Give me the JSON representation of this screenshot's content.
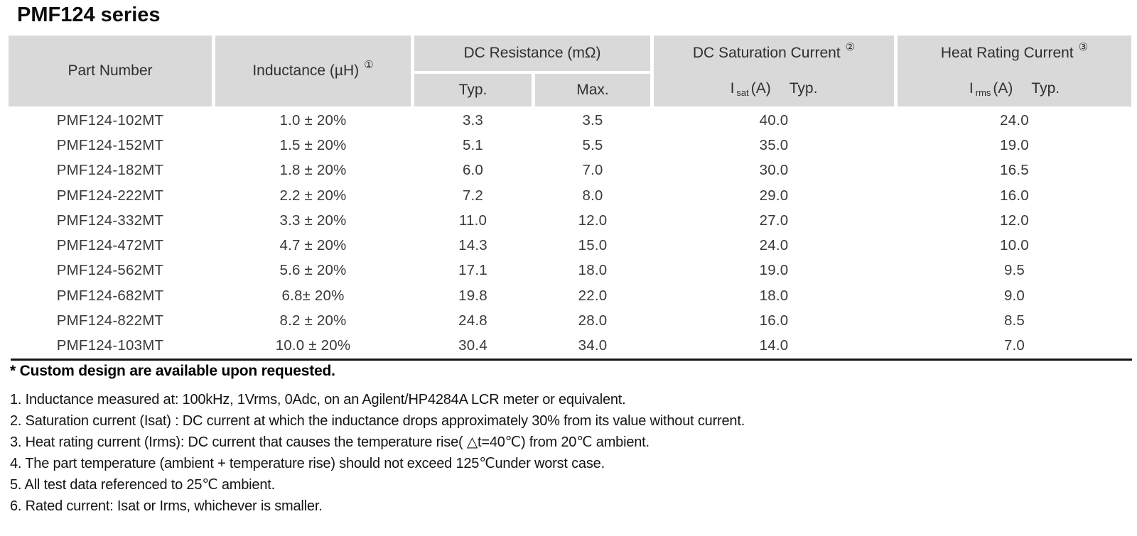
{
  "title": "PMF124 series",
  "colors": {
    "header_bg": "#d9d9d9",
    "table_text": "#3a3a3a",
    "note_text": "#141414"
  },
  "table": {
    "header": {
      "part_number": "Part Number",
      "inductance": "Inductance (µH)",
      "inductance_ref": "①",
      "dc_resistance": "DC Resistance (mΩ)",
      "typ": "Typ.",
      "max": "Max.",
      "saturation": "DC Saturation Current",
      "saturation_ref": "②",
      "saturation_symbol": "I",
      "saturation_symbol_sub": "sat",
      "saturation_unit": "(A)",
      "saturation_typ": "Typ.",
      "heat": "Heat Rating Current",
      "heat_ref": "③",
      "heat_symbol": "I",
      "heat_symbol_sub": "rms",
      "heat_unit": "(A)",
      "heat_typ": "Typ."
    },
    "rows": [
      {
        "part": "PMF124-102MT",
        "inductance": "1.0 ± 20%",
        "dcr_typ": "3.3",
        "dcr_max": "3.5",
        "isat": "40.0",
        "irms": "24.0"
      },
      {
        "part": "PMF124-152MT",
        "inductance": "1.5 ± 20%",
        "dcr_typ": "5.1",
        "dcr_max": "5.5",
        "isat": "35.0",
        "irms": "19.0"
      },
      {
        "part": "PMF124-182MT",
        "inductance": "1.8 ± 20%",
        "dcr_typ": "6.0",
        "dcr_max": "7.0",
        "isat": "30.0",
        "irms": "16.5"
      },
      {
        "part": "PMF124-222MT",
        "inductance": "2.2 ± 20%",
        "dcr_typ": "7.2",
        "dcr_max": "8.0",
        "isat": "29.0",
        "irms": "16.0"
      },
      {
        "part": "PMF124-332MT",
        "inductance": "3.3 ± 20%",
        "dcr_typ": "11.0",
        "dcr_max": "12.0",
        "isat": "27.0",
        "irms": "12.0"
      },
      {
        "part": "PMF124-472MT",
        "inductance": "4.7 ± 20%",
        "dcr_typ": "14.3",
        "dcr_max": "15.0",
        "isat": "24.0",
        "irms": "10.0"
      },
      {
        "part": "PMF124-562MT",
        "inductance": "5.6 ± 20%",
        "dcr_typ": "17.1",
        "dcr_max": "18.0",
        "isat": "19.0",
        "irms": "9.5"
      },
      {
        "part": "PMF124-682MT",
        "inductance": "6.8± 20%",
        "dcr_typ": "19.8",
        "dcr_max": "22.0",
        "isat": "18.0",
        "irms": "9.0"
      },
      {
        "part": "PMF124-822MT",
        "inductance": "8.2 ± 20%",
        "dcr_typ": "24.8",
        "dcr_max": "28.0",
        "isat": "16.0",
        "irms": "8.5"
      },
      {
        "part": "PMF124-103MT",
        "inductance": "10.0 ± 20%",
        "dcr_typ": "30.4",
        "dcr_max": "34.0",
        "isat": "14.0",
        "irms": "7.0"
      }
    ]
  },
  "footnotes": {
    "custom_note": "* Custom design are available upon requested.",
    "notes": [
      "1. Inductance measured at: 100kHz, 1Vrms, 0Adc, on an Agilent/HP4284A LCR meter or equivalent.",
      "2. Saturation current (Isat) : DC current at which the inductance drops approximately 30% from its value without current.",
      "3. Heat rating current (Irms): DC current that causes the temperature rise( △t=40℃) from 20℃ ambient.",
      "4. The part temperature (ambient + temperature rise) should not exceed 125℃under worst case.",
      "5. All test data referenced to 25℃ ambient.",
      "6. Rated current: Isat or Irms, whichever is smaller."
    ]
  }
}
